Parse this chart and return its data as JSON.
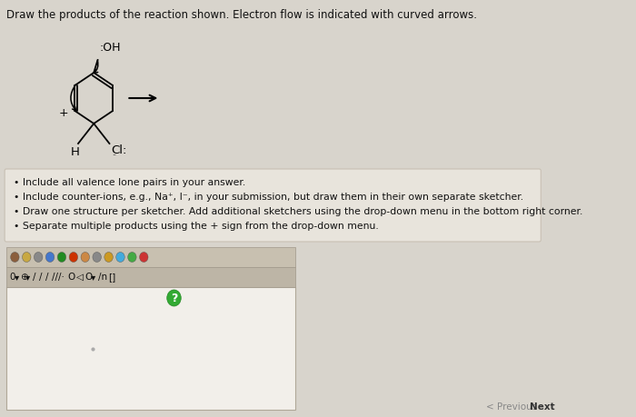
{
  "title": "Draw the products of the reaction shown. Electron flow is indicated with curved arrows.",
  "bg_color": "#d8d4cc",
  "instruction_box_color": "#e8e4dc",
  "instruction_box_edge": "#c8c0b4",
  "instruction_lines": [
    "Include all valence lone pairs in your answer.",
    "Include counter-ions, e.g., Na⁺, I⁻, in your submission, but draw them in their own separate sketcher.",
    "Draw one structure per sketcher. Add additional sketchers using the drop-down menu in the bottom right corner.",
    "Separate multiple products using the + sign from the drop-down menu."
  ],
  "toolbar1_color": "#c8c0b0",
  "toolbar2_color": "#c0b8a8",
  "sketcher_bg": "#f0ede8",
  "sketcher_border": "#aaa89e"
}
